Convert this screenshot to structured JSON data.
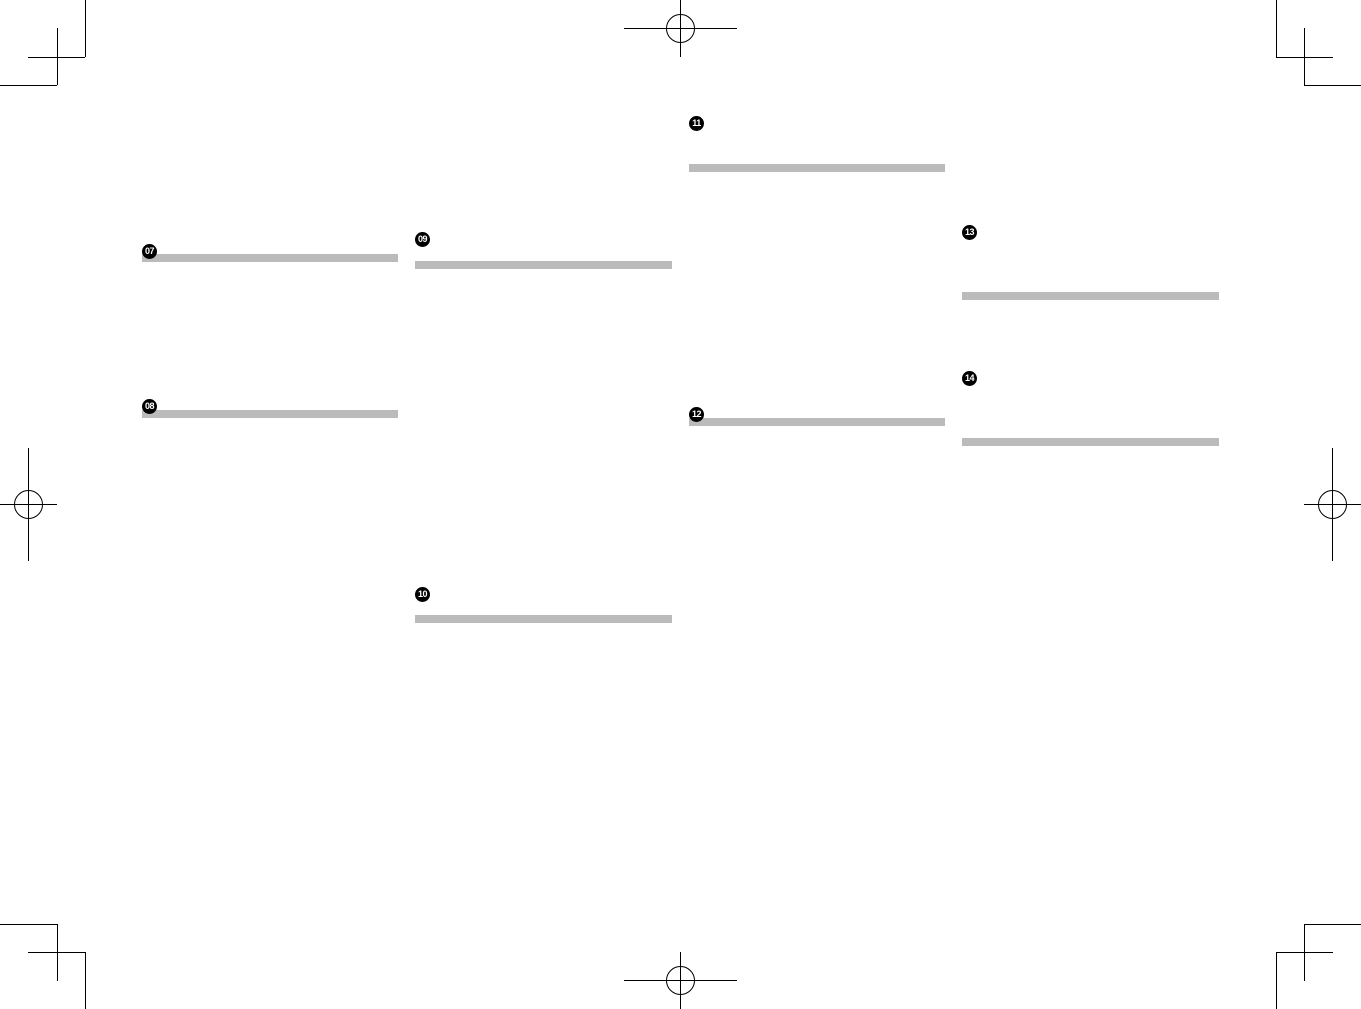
{
  "sections": [
    {
      "number": "07"
    },
    {
      "number": "08"
    },
    {
      "number": "09"
    },
    {
      "number": "10"
    },
    {
      "number": "11"
    },
    {
      "number": "12"
    },
    {
      "number": "13"
    },
    {
      "number": "14"
    }
  ],
  "colors": {
    "heading_bar": "#bbbbbb",
    "marker": "#000000"
  }
}
